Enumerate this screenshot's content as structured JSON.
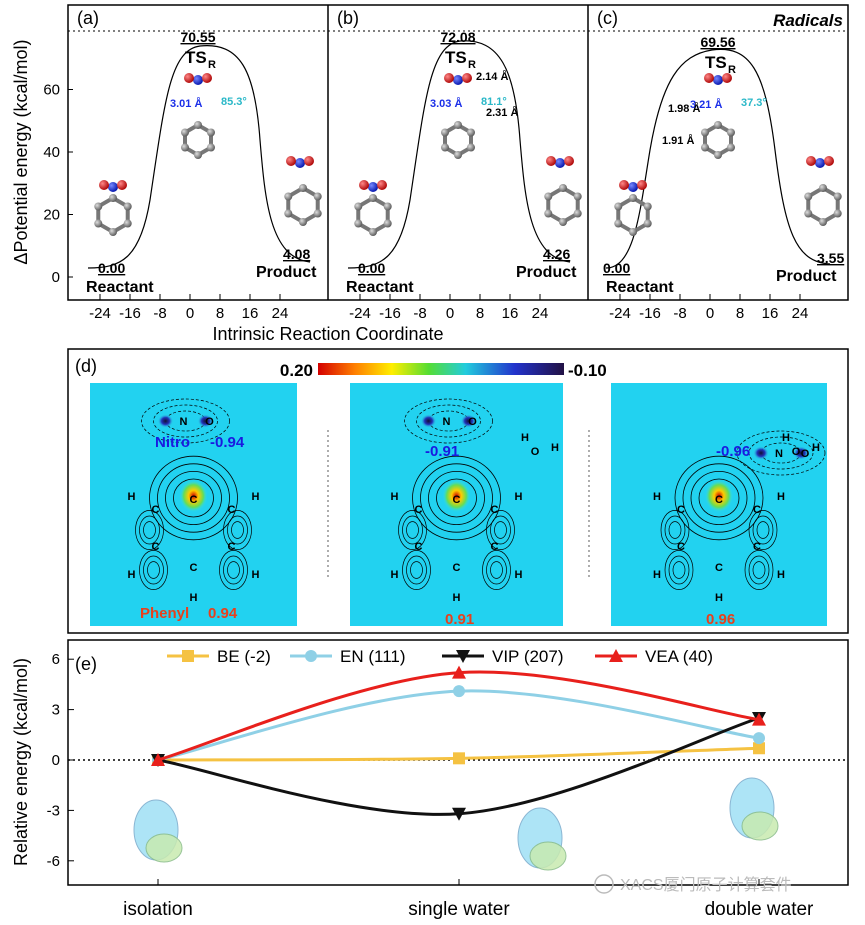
{
  "top": {
    "ylabel": "ΔPotential energy (kcal/mol)",
    "xlabel": "Intrinsic Reaction Coordinate",
    "yticks": [
      "0",
      "20",
      "40",
      "60"
    ],
    "xticks": [
      "-24",
      "-16",
      "-8",
      "0",
      "8",
      "16",
      "24"
    ],
    "reactant_label": "Reactant",
    "product_label": "Product",
    "ts_label": "TS",
    "ts_sub": "R",
    "panels": [
      {
        "letter": "(a)",
        "ts": "70.55",
        "reactant": "0.00",
        "product": "4.08",
        "dist1": "3.01 Å",
        "angle": "85.3°"
      },
      {
        "letter": "(b)",
        "ts": "72.08",
        "reactant": "0.00",
        "product": "4.26",
        "dist1": "3.03 Å",
        "angle": "81.1°",
        "dist2": "2.14 Å",
        "dist3": "2.31 Å"
      },
      {
        "letter": "(c)",
        "ts": "69.56",
        "reactant": "0.00",
        "product": "3.55",
        "dist1": "3.21 Å",
        "angle": "37.3°",
        "dist2": "1.98 Å",
        "dist3": "1.91 Å",
        "title": "Radicals"
      }
    ]
  },
  "middle": {
    "letter": "(d)",
    "scale_max": "0.20",
    "scale_min": "-0.10",
    "nitro_label": "Nitro",
    "nitro_value": "-0.94",
    "phenyl_label": "Phenyl",
    "phenyl_value": "0.94",
    "value2_top": "-0.91",
    "value2_bottom": "0.91",
    "value3_top": "-0.96",
    "value3_bottom": "0.96",
    "atom_N": "N",
    "atom_O": "O",
    "atom_C": "C",
    "atom_H": "H"
  },
  "bottom": {
    "letter": "(e)",
    "ylabel": "Relative energy (kcal/mol)",
    "watermark": "XACS厦门原子计算套件"
  },
  "chart_data": {
    "type": "line",
    "categories": [
      "isolation",
      "single water",
      "double water"
    ],
    "series": [
      {
        "name": "BE (-2)",
        "values": [
          0,
          0.1,
          0.7
        ],
        "color": "#f5c242",
        "marker": "square"
      },
      {
        "name": "EN (111)",
        "values": [
          0,
          4.1,
          1.3
        ],
        "color": "#8fd0e6",
        "marker": "circle"
      },
      {
        "name": "VIP (207)",
        "values": [
          0,
          -3.2,
          2.5
        ],
        "color": "#111111",
        "marker": "triangle-down"
      },
      {
        "name": "VEA (40)",
        "values": [
          0,
          5.2,
          2.4
        ],
        "color": "#e8201c",
        "marker": "triangle-up"
      }
    ],
    "yticks": [
      "-6",
      "-3",
      "0",
      "3",
      "6"
    ],
    "ylim": [
      -7.5,
      7.2
    ],
    "zero_line": "dotted"
  }
}
